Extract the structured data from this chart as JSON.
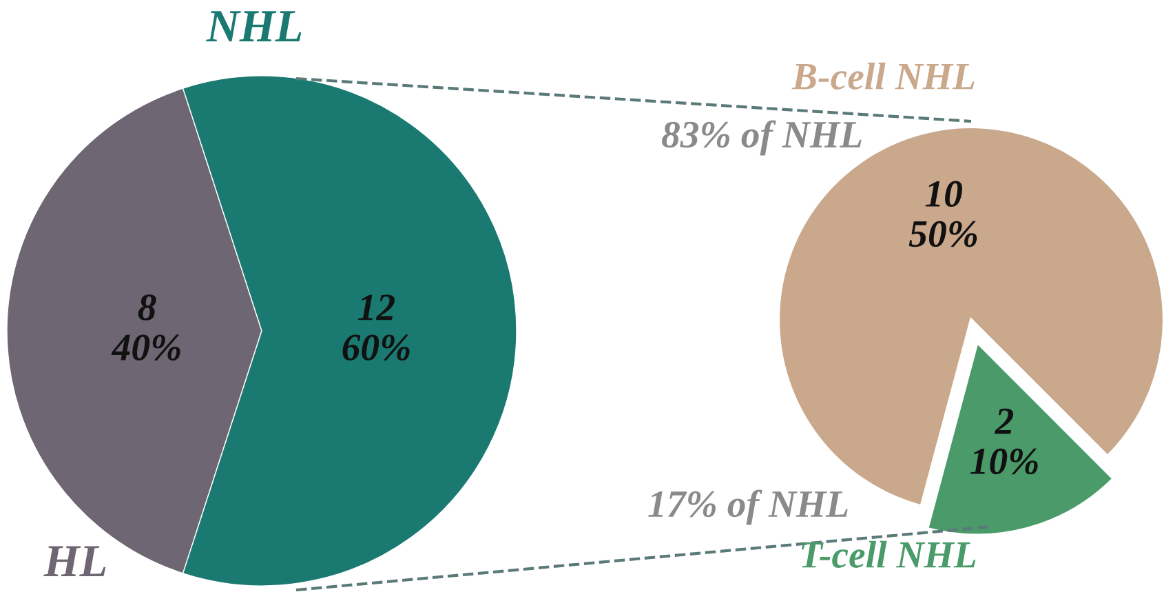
{
  "chart_data": [
    {
      "type": "pie",
      "categories": [
        "HL",
        "NHL"
      ],
      "values": [
        8,
        12
      ],
      "colors": [
        "#6e6672",
        "#1a7a72"
      ],
      "value_labels": [
        "8\n40%",
        "12\n60%"
      ]
    },
    {
      "type": "pie",
      "categories": [
        "B-cell NHL",
        "T-cell NHL"
      ],
      "values": [
        10,
        2
      ],
      "colors": [
        "#c9a88c",
        "#4a9a6a"
      ],
      "value_labels": [
        "10\n50%",
        "2\n10%"
      ],
      "annotations": [
        "83% of NHL",
        "17% of NHL"
      ]
    }
  ]
}
